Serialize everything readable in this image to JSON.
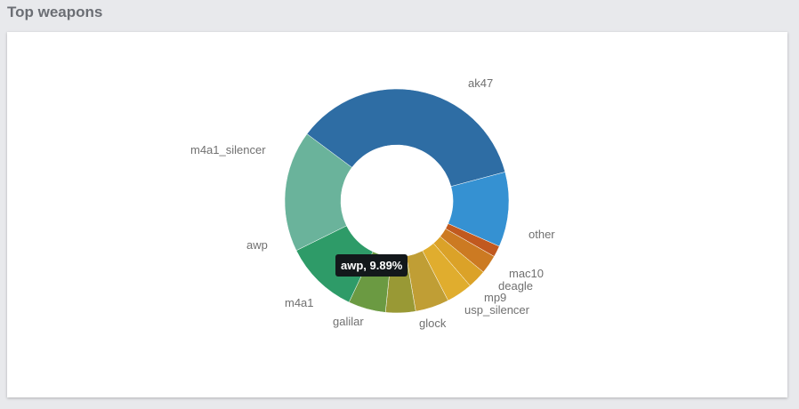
{
  "panel": {
    "title": "Top weapons"
  },
  "tooltip": {
    "text": "awp, 9.89%"
  },
  "chart_data": {
    "type": "pie",
    "donut": true,
    "labels": [
      "ak47",
      "other",
      "mac10",
      "deagle",
      "mp9",
      "usp_silencer",
      "glock",
      "galilar",
      "m4a1",
      "awp",
      "m4a1_silencer"
    ],
    "values": [
      33.0,
      10.0,
      1.5,
      2.5,
      2.5,
      3.5,
      4.5,
      4.0,
      5.0,
      9.89,
      16.2
    ],
    "colors": [
      "#2e6da4",
      "#3591d2",
      "#c1591f",
      "#cc7a22",
      "#dba228",
      "#e0ad2e",
      "#c09e35",
      "#999935",
      "#6b9a42",
      "#2e9b68",
      "#6ab39b",
      "#2c7f85"
    ],
    "legend": "none"
  }
}
